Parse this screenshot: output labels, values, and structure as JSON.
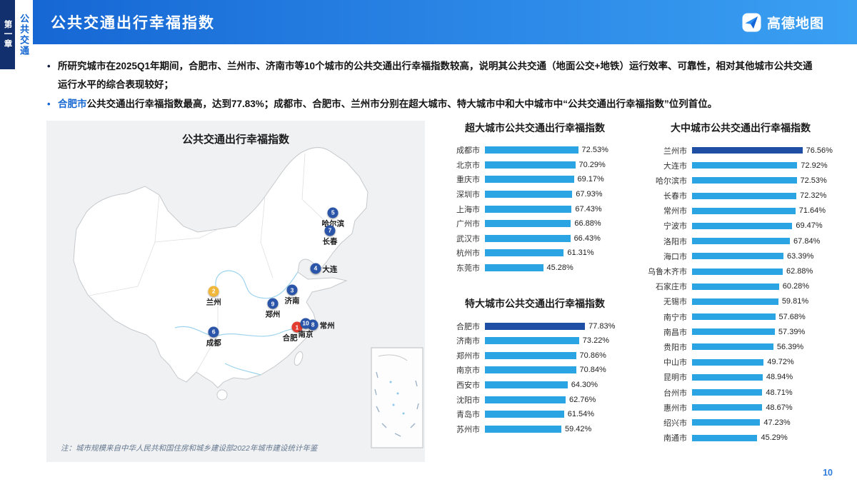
{
  "header": {
    "chapter": "第一章",
    "section": "公共交通",
    "title": "公共交通出行幸福指数",
    "brand": "高德地图"
  },
  "colors": {
    "accent_blue": "#1466d2",
    "bar": "#2aa4e3",
    "bar_highlight": "#1f4fa5",
    "marker_blue": "#2b55a8",
    "marker_yellow": "#f0b73a",
    "marker_red": "#e23d30"
  },
  "bullets": [
    {
      "dot": "dark",
      "segments": [
        {
          "text": "所研究城市在2025Q1年期间，合肥市、兰州市、济南市等10个城市的公共交通出行幸福指数较高，说明其公共交通（地面公交+地铁）运行效率、可靠性，相对其他城市公共交通运行水平的综合表现较好；",
          "color": "default"
        }
      ]
    },
    {
      "dot": "blue",
      "segments": [
        {
          "text": "合肥市",
          "color": "blue"
        },
        {
          "text": "公共交通出行幸福指数最高，达到77.83%；成都市、合肥市、兰州市分别在超大城市、特大城市中和大中城市中“公共交通出行幸福指数”位列首位。",
          "color": "default"
        }
      ]
    }
  ],
  "map": {
    "title": "公共交通出行幸福指数",
    "note": "注：城市规模来自中华人民共和国住房和城乡建设部2022年城市建设统计年鉴",
    "markers": [
      {
        "num": "1",
        "city": "合肥",
        "color": "#e23d30",
        "x": 66.2,
        "y": 60.5,
        "label_pos": "below-left"
      },
      {
        "num": "2",
        "city": "兰州",
        "color": "#f0b73a",
        "x": 44.2,
        "y": 50.0,
        "label_pos": "below"
      },
      {
        "num": "3",
        "city": "济南",
        "color": "#2b55a8",
        "x": 64.9,
        "y": 49.6,
        "label_pos": "below"
      },
      {
        "num": "4",
        "city": "大连",
        "color": "#2b55a8",
        "x": 71.1,
        "y": 43.3,
        "label_pos": "right"
      },
      {
        "num": "5",
        "city": "哈尔滨",
        "color": "#2b55a8",
        "x": 75.7,
        "y": 27.0,
        "label_pos": "below"
      },
      {
        "num": "6",
        "city": "成都",
        "color": "#2b55a8",
        "x": 44.2,
        "y": 61.9,
        "label_pos": "below"
      },
      {
        "num": "7",
        "city": "长春",
        "color": "#2b55a8",
        "x": 74.9,
        "y": 32.2,
        "label_pos": "below"
      },
      {
        "num": "8",
        "city": "常州",
        "color": "#2b55a8",
        "x": 70.4,
        "y": 59.8,
        "label_pos": "right"
      },
      {
        "num": "9",
        "city": "郑州",
        "color": "#2b55a8",
        "x": 59.8,
        "y": 53.6,
        "label_pos": "below"
      },
      {
        "num": "10",
        "city": "南京",
        "color": "#2b55a8",
        "x": 68.5,
        "y": 59.4,
        "label_pos": "below"
      }
    ]
  },
  "chart_data": [
    {
      "type": "bar",
      "title": "超大城市公共交通出行幸福指数",
      "orientation": "horizontal",
      "unit": "%",
      "xlim": [
        0,
        110
      ],
      "highlight_index": -1,
      "categories": [
        "成都市",
        "北京市",
        "重庆市",
        "深圳市",
        "上海市",
        "广州市",
        "武汉市",
        "杭州市",
        "东莞市"
      ],
      "values": [
        72.53,
        70.29,
        69.17,
        67.93,
        67.43,
        66.88,
        66.43,
        61.31,
        45.28
      ]
    },
    {
      "type": "bar",
      "title": "特大城市公共交通出行幸福指数",
      "orientation": "horizontal",
      "unit": "%",
      "xlim": [
        0,
        110
      ],
      "highlight_index": 0,
      "categories": [
        "合肥市",
        "济南市",
        "郑州市",
        "南京市",
        "西安市",
        "沈阳市",
        "青岛市",
        "苏州市"
      ],
      "values": [
        77.83,
        73.22,
        70.86,
        70.84,
        64.3,
        62.76,
        61.54,
        59.42
      ]
    },
    {
      "type": "bar",
      "title": "大中城市公共交通出行幸福指数",
      "orientation": "horizontal",
      "unit": "%",
      "xlim": [
        0,
        100
      ],
      "highlight_index": 0,
      "categories": [
        "兰州市",
        "大连市",
        "哈尔滨市",
        "长春市",
        "常州市",
        "宁波市",
        "洛阳市",
        "海口市",
        "乌鲁木齐市",
        "石家庄市",
        "无锡市",
        "南宁市",
        "南昌市",
        "贵阳市",
        "中山市",
        "昆明市",
        "台州市",
        "惠州市",
        "绍兴市",
        "南通市"
      ],
      "values": [
        76.56,
        72.92,
        72.53,
        72.32,
        71.64,
        69.47,
        67.84,
        63.39,
        62.88,
        60.28,
        59.81,
        57.68,
        57.39,
        56.39,
        49.72,
        48.94,
        48.71,
        48.67,
        47.23,
        45.29
      ]
    }
  ],
  "footer": {
    "page_number": "10"
  }
}
